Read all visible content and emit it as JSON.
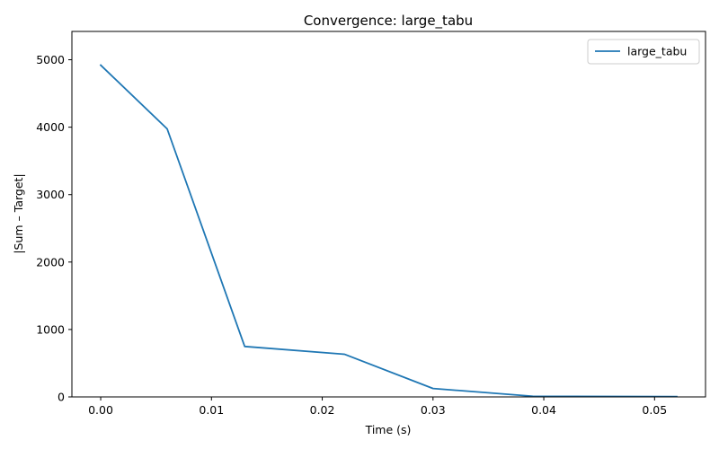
{
  "chart_data": {
    "type": "line",
    "title": "Convergence: large_tabu",
    "xlabel": "Time (s)",
    "ylabel": "|Sum – Target|",
    "xlim": [
      -0.0026,
      0.0546
    ],
    "ylim": [
      0,
      5420
    ],
    "xticks": [
      0.0,
      0.01,
      0.02,
      0.03,
      0.04,
      0.05
    ],
    "xtick_labels": [
      "0.00",
      "0.01",
      "0.02",
      "0.03",
      "0.04",
      "0.05"
    ],
    "yticks": [
      0,
      1000,
      2000,
      3000,
      4000,
      5000
    ],
    "ytick_labels": [
      "0",
      "1000",
      "2000",
      "3000",
      "4000",
      "5000"
    ],
    "grid": false,
    "legend": "top-right",
    "series": [
      {
        "name": "large_tabu",
        "color": "#1f77b4",
        "x": [
          0.0,
          0.006,
          0.013,
          0.022,
          0.03,
          0.039,
          0.052
        ],
        "y": [
          4920,
          3975,
          748,
          633,
          125,
          10,
          5
        ]
      }
    ]
  }
}
